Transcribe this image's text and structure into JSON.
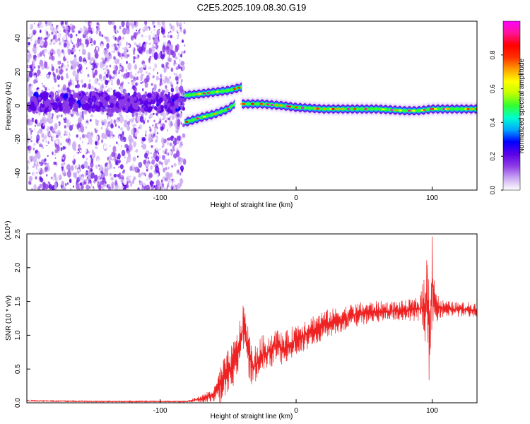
{
  "figure": {
    "title": "C2E5.2025.109.08.30.G19"
  },
  "chart_data": [
    {
      "type": "heatmap",
      "xlabel": "Height of straight line (km)",
      "ylabel": "Frequency (Hz)",
      "xlim": [
        -198,
        133
      ],
      "ylim": [
        -50,
        50
      ],
      "x_ticks": [
        -100,
        0,
        100
      ],
      "y_ticks": [
        -40,
        -20,
        0,
        20,
        40
      ],
      "noise_region_x": [
        -198,
        -82
      ],
      "noise_band_center_hz": 2,
      "tracks": [
        {
          "x": [
            -82,
            -70,
            -60,
            -50,
            -40
          ],
          "y": [
            6,
            7,
            8,
            9,
            11
          ]
        },
        {
          "x": [
            -82,
            -70,
            -60,
            -50,
            -45
          ],
          "y": [
            -10,
            -7,
            -5,
            -2,
            1
          ]
        },
        {
          "x": [
            -40,
            -25,
            -10,
            0,
            20,
            40,
            60,
            80,
            90,
            100,
            110,
            120,
            133
          ],
          "y": [
            1,
            1,
            0,
            -1,
            -2,
            -2,
            -2,
            -3,
            -3,
            -2,
            -2,
            -2,
            -2
          ]
        }
      ],
      "colorbar": {
        "label": "Normalized spectral amplitude",
        "range": [
          0,
          1
        ],
        "ticks": [
          0.0,
          0.2,
          0.4,
          0.6,
          0.8
        ],
        "tick_labels": [
          "0.0",
          "0.2",
          "0.4",
          "0.6",
          "0.8"
        ],
        "colors": [
          "#ffffff",
          "#c9a8f2",
          "#8d3be6",
          "#5b00e8",
          "#0000ff",
          "#00a8ff",
          "#00ffd0",
          "#30ff30",
          "#c0ff00",
          "#ffff00",
          "#ffa000",
          "#ff3000",
          "#ff0000",
          "#ff1493",
          "#ff00ff"
        ]
      }
    },
    {
      "type": "line",
      "xlabel": "Height of straight line (km)",
      "ylabel": "SNR (10 * v/v)",
      "yscale_label": "(x10⁴)",
      "xlim": [
        -198,
        133
      ],
      "ylim": [
        0,
        2.5
      ],
      "x_ticks": [
        -100,
        0,
        100
      ],
      "y_ticks": [
        0.0,
        0.5,
        1.0,
        1.5,
        2.0,
        2.5
      ],
      "y_tick_labels": [
        "0.0",
        "0.5",
        "1.0",
        "1.5",
        "2.0",
        "2.5"
      ],
      "series": [
        {
          "color": "#ee2222",
          "x": [
            -198,
            -150,
            -100,
            -80,
            -70,
            -60,
            -55,
            -45,
            -40,
            -38,
            -35,
            -32,
            -30,
            -25,
            -20,
            -15,
            -10,
            -5,
            0,
            10,
            20,
            30,
            40,
            50,
            60,
            70,
            80,
            90,
            93,
            96,
            98,
            100,
            102,
            105,
            110,
            120,
            133
          ],
          "y": [
            0.03,
            0.02,
            0.02,
            0.02,
            0.06,
            0.12,
            0.3,
            0.6,
            1.0,
            1.15,
            0.75,
            0.5,
            0.55,
            0.7,
            0.75,
            0.85,
            0.8,
            0.85,
            0.95,
            1.05,
            1.15,
            1.22,
            1.28,
            1.33,
            1.35,
            1.36,
            1.37,
            1.38,
            1.4,
            1.5,
            1.0,
            1.9,
            1.45,
            1.4,
            1.39,
            1.38,
            1.38
          ],
          "noise_amplitude": [
            0.01,
            0.01,
            0.01,
            0.01,
            0.04,
            0.1,
            0.25,
            0.3,
            0.3,
            0.3,
            0.3,
            0.25,
            0.25,
            0.25,
            0.22,
            0.22,
            0.2,
            0.2,
            0.2,
            0.2,
            0.18,
            0.16,
            0.15,
            0.14,
            0.13,
            0.12,
            0.12,
            0.15,
            0.3,
            0.6,
            0.9,
            0.6,
            0.35,
            0.12,
            0.1,
            0.09,
            0.09
          ]
        }
      ]
    }
  ]
}
